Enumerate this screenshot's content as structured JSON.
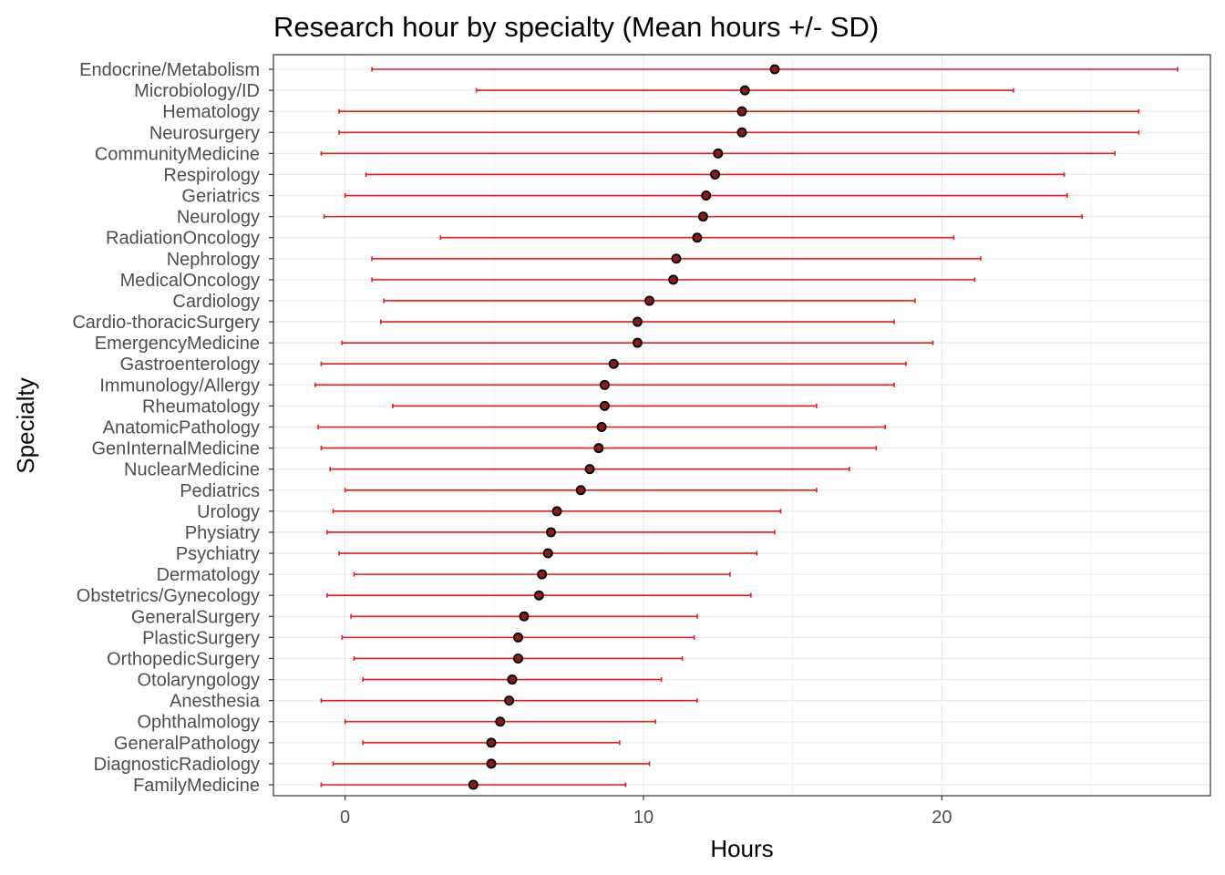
{
  "chart_data": {
    "type": "scatter",
    "title": "Research hour by specialty (Mean hours +/- SD)",
    "xlabel": "Hours",
    "ylabel": "Specialty",
    "xlim": [
      -2.4,
      29.0
    ],
    "x_ticks": [
      0,
      10,
      20
    ],
    "grid": true,
    "legend": "none",
    "colors": {
      "errorbar": "#e41a1c",
      "point": "#000000",
      "point_fill": "#8b1a1a"
    },
    "series": [
      {
        "points": [
          {
            "category": "Endocrine/Metabolism",
            "mean": 14.4,
            "low": 0.9,
            "high": 27.9
          },
          {
            "category": "Microbiology/ID",
            "mean": 13.4,
            "low": 4.4,
            "high": 22.4
          },
          {
            "category": "Hematology",
            "mean": 13.3,
            "low": -0.2,
            "high": 26.6
          },
          {
            "category": "Neurosurgery",
            "mean": 13.3,
            "low": -0.2,
            "high": 26.6
          },
          {
            "category": "CommunityMedicine",
            "mean": 12.5,
            "low": -0.8,
            "high": 25.8
          },
          {
            "category": "Respirology",
            "mean": 12.4,
            "low": 0.7,
            "high": 24.1
          },
          {
            "category": "Geriatrics",
            "mean": 12.1,
            "low": 0.0,
            "high": 24.2
          },
          {
            "category": "Neurology",
            "mean": 12.0,
            "low": -0.7,
            "high": 24.7
          },
          {
            "category": "RadiationOncology",
            "mean": 11.8,
            "low": 3.2,
            "high": 20.4
          },
          {
            "category": "Nephrology",
            "mean": 11.1,
            "low": 0.9,
            "high": 21.3
          },
          {
            "category": "MedicalOncology",
            "mean": 11.0,
            "low": 0.9,
            "high": 21.1
          },
          {
            "category": "Cardiology",
            "mean": 10.2,
            "low": 1.3,
            "high": 19.1
          },
          {
            "category": "Cardio-thoracicSurgery",
            "mean": 9.8,
            "low": 1.2,
            "high": 18.4
          },
          {
            "category": "EmergencyMedicine",
            "mean": 9.8,
            "low": -0.1,
            "high": 19.7
          },
          {
            "category": "Gastroenterology",
            "mean": 9.0,
            "low": -0.8,
            "high": 18.8
          },
          {
            "category": "Immunology/Allergy",
            "mean": 8.7,
            "low": -1.0,
            "high": 18.4
          },
          {
            "category": "Rheumatology",
            "mean": 8.7,
            "low": 1.6,
            "high": 15.8
          },
          {
            "category": "AnatomicPathology",
            "mean": 8.6,
            "low": -0.9,
            "high": 18.1
          },
          {
            "category": "GenInternalMedicine",
            "mean": 8.5,
            "low": -0.8,
            "high": 17.8
          },
          {
            "category": "NuclearMedicine",
            "mean": 8.2,
            "low": -0.5,
            "high": 16.9
          },
          {
            "category": "Pediatrics",
            "mean": 7.9,
            "low": 0.0,
            "high": 15.8
          },
          {
            "category": "Urology",
            "mean": 7.1,
            "low": -0.4,
            "high": 14.6
          },
          {
            "category": "Physiatry",
            "mean": 6.9,
            "low": -0.6,
            "high": 14.4
          },
          {
            "category": "Psychiatry",
            "mean": 6.8,
            "low": -0.2,
            "high": 13.8
          },
          {
            "category": "Dermatology",
            "mean": 6.6,
            "low": 0.3,
            "high": 12.9
          },
          {
            "category": "Obstetrics/Gynecology",
            "mean": 6.5,
            "low": -0.6,
            "high": 13.6
          },
          {
            "category": "GeneralSurgery",
            "mean": 6.0,
            "low": 0.2,
            "high": 11.8
          },
          {
            "category": "PlasticSurgery",
            "mean": 5.8,
            "low": -0.1,
            "high": 11.7
          },
          {
            "category": "OrthopedicSurgery",
            "mean": 5.8,
            "low": 0.3,
            "high": 11.3
          },
          {
            "category": "Otolaryngology",
            "mean": 5.6,
            "low": 0.6,
            "high": 10.6
          },
          {
            "category": "Anesthesia",
            "mean": 5.5,
            "low": -0.8,
            "high": 11.8
          },
          {
            "category": "Ophthalmology",
            "mean": 5.2,
            "low": 0.0,
            "high": 10.4
          },
          {
            "category": "GeneralPathology",
            "mean": 4.9,
            "low": 0.6,
            "high": 9.2
          },
          {
            "category": "DiagnosticRadiology",
            "mean": 4.9,
            "low": -0.4,
            "high": 10.2
          },
          {
            "category": "FamilyMedicine",
            "mean": 4.3,
            "low": -0.8,
            "high": 9.4
          }
        ]
      }
    ]
  }
}
